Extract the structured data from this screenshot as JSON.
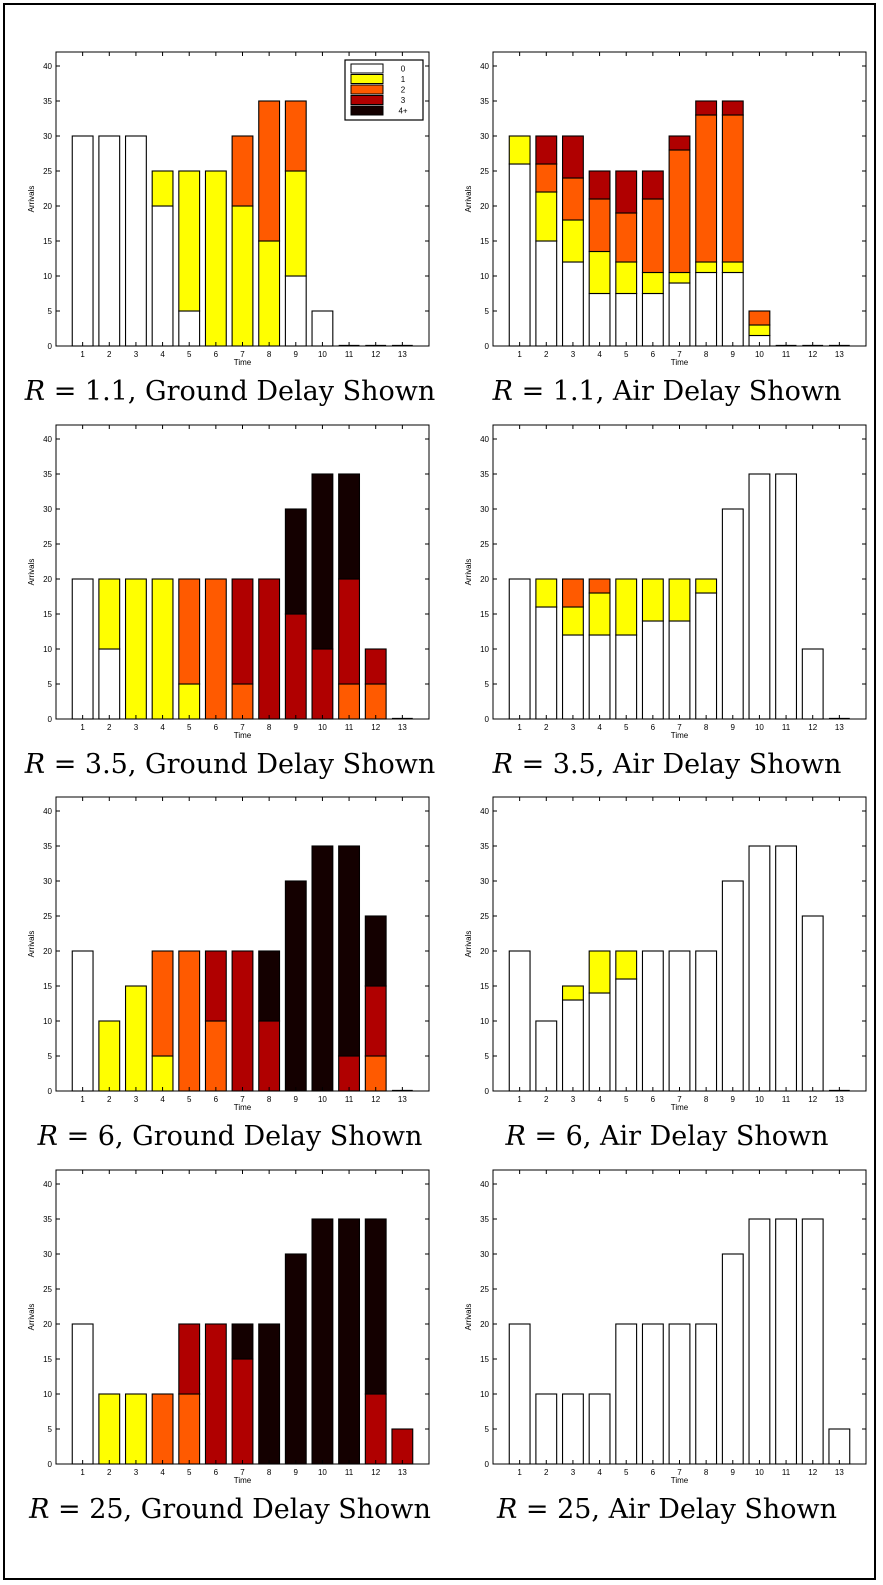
{
  "legend": {
    "items": [
      {
        "label": "0",
        "color": "#ffffff"
      },
      {
        "label": "1",
        "color": "#ffff00"
      },
      {
        "label": "2",
        "color": "#ff5a00"
      },
      {
        "label": "3",
        "color": "#b00000"
      },
      {
        "label": "4+",
        "color": "#140000"
      }
    ]
  },
  "colors": [
    "#ffffff",
    "#ffff00",
    "#ff5a00",
    "#b00000",
    "#140000"
  ],
  "chart_data": [
    {
      "type": "bar",
      "stacked": true,
      "caption": {
        "var": "R",
        "eq": " = 1.1, ",
        "text": "Ground Delay Shown"
      },
      "xlabel": "Time",
      "ylabel": "Arrivals",
      "ylim": [
        0,
        42
      ],
      "yticks": [
        0,
        5,
        10,
        15,
        20,
        25,
        30,
        35,
        40
      ],
      "categories": [
        "1",
        "2",
        "3",
        "4",
        "5",
        "6",
        "7",
        "8",
        "9",
        "10",
        "11",
        "12",
        "13"
      ],
      "legend_position": "top-right",
      "series": [
        {
          "name": "0",
          "values": [
            30,
            30,
            30,
            20,
            5,
            0,
            0,
            0,
            10,
            5,
            0,
            0,
            0
          ]
        },
        {
          "name": "1",
          "values": [
            0,
            0,
            0,
            5,
            20,
            25,
            20,
            15,
            15,
            0,
            0,
            0,
            0
          ]
        },
        {
          "name": "2",
          "values": [
            0,
            0,
            0,
            0,
            0,
            0,
            10,
            20,
            10,
            0,
            0,
            0,
            0
          ]
        },
        {
          "name": "3",
          "values": [
            0,
            0,
            0,
            0,
            0,
            0,
            0,
            0,
            0,
            0,
            0,
            0,
            0
          ]
        },
        {
          "name": "4+",
          "values": [
            0,
            0,
            0,
            0,
            0,
            0,
            0,
            0,
            0,
            0,
            0,
            0,
            0
          ]
        }
      ]
    },
    {
      "type": "bar",
      "stacked": true,
      "caption": {
        "var": "R",
        "eq": " = 1.1, ",
        "text": "Air Delay Shown"
      },
      "xlabel": "Time",
      "ylabel": "Arrivals",
      "ylim": [
        0,
        42
      ],
      "yticks": [
        0,
        5,
        10,
        15,
        20,
        25,
        30,
        35,
        40
      ],
      "categories": [
        "1",
        "2",
        "3",
        "4",
        "5",
        "6",
        "7",
        "8",
        "9",
        "10",
        "11",
        "12",
        "13"
      ],
      "series": [
        {
          "name": "0",
          "values": [
            26,
            15,
            12,
            7.5,
            7.5,
            7.5,
            9,
            10.5,
            10.5,
            1.5,
            0,
            0,
            0
          ]
        },
        {
          "name": "1",
          "values": [
            4,
            7,
            6,
            6,
            4.5,
            3,
            1.5,
            1.5,
            1.5,
            1.5,
            0,
            0,
            0
          ]
        },
        {
          "name": "2",
          "values": [
            0,
            4,
            6,
            7.5,
            7,
            10.5,
            17.5,
            21,
            21,
            2,
            0,
            0,
            0
          ]
        },
        {
          "name": "3",
          "values": [
            0,
            4,
            6,
            4,
            6,
            4,
            2,
            2,
            2,
            0,
            0,
            0,
            0
          ]
        },
        {
          "name": "4+",
          "values": [
            0,
            0,
            0,
            0,
            0,
            0,
            0,
            0,
            0,
            0,
            0,
            0,
            0
          ]
        }
      ]
    },
    {
      "type": "bar",
      "stacked": true,
      "caption": {
        "var": "R",
        "eq": " = 3.5, ",
        "text": "Ground Delay Shown"
      },
      "xlabel": "Time",
      "ylabel": "Arrivals",
      "ylim": [
        0,
        42
      ],
      "yticks": [
        0,
        5,
        10,
        15,
        20,
        25,
        30,
        35,
        40
      ],
      "categories": [
        "1",
        "2",
        "3",
        "4",
        "5",
        "6",
        "7",
        "8",
        "9",
        "10",
        "11",
        "12",
        "13"
      ],
      "series": [
        {
          "name": "0",
          "values": [
            20,
            10,
            0,
            0,
            0,
            0,
            0,
            0,
            0,
            0,
            0,
            0,
            0
          ]
        },
        {
          "name": "1",
          "values": [
            0,
            10,
            20,
            20,
            5,
            0,
            0,
            0,
            0,
            0,
            0,
            0,
            0
          ]
        },
        {
          "name": "2",
          "values": [
            0,
            0,
            0,
            0,
            15,
            20,
            5,
            0,
            0,
            0,
            5,
            5,
            0
          ]
        },
        {
          "name": "3",
          "values": [
            0,
            0,
            0,
            0,
            0,
            0,
            15,
            20,
            15,
            10,
            15,
            5,
            0
          ]
        },
        {
          "name": "4+",
          "values": [
            0,
            0,
            0,
            0,
            0,
            0,
            0,
            0,
            15,
            25,
            15,
            0,
            0
          ]
        }
      ]
    },
    {
      "type": "bar",
      "stacked": true,
      "caption": {
        "var": "R",
        "eq": " = 3.5, ",
        "text": "Air Delay Shown"
      },
      "xlabel": "Time",
      "ylabel": "Arrivals",
      "ylim": [
        0,
        42
      ],
      "yticks": [
        0,
        5,
        10,
        15,
        20,
        25,
        30,
        35,
        40
      ],
      "categories": [
        "1",
        "2",
        "3",
        "4",
        "5",
        "6",
        "7",
        "8",
        "9",
        "10",
        "11",
        "12",
        "13"
      ],
      "series": [
        {
          "name": "0",
          "values": [
            20,
            16,
            12,
            12,
            12,
            14,
            14,
            18,
            30,
            35,
            35,
            10,
            0
          ]
        },
        {
          "name": "1",
          "values": [
            0,
            4,
            4,
            6,
            8,
            6,
            6,
            2,
            0,
            0,
            0,
            0,
            0
          ]
        },
        {
          "name": "2",
          "values": [
            0,
            0,
            4,
            2,
            0,
            0,
            0,
            0,
            0,
            0,
            0,
            0,
            0
          ]
        },
        {
          "name": "3",
          "values": [
            0,
            0,
            0,
            0,
            0,
            0,
            0,
            0,
            0,
            0,
            0,
            0,
            0
          ]
        },
        {
          "name": "4+",
          "values": [
            0,
            0,
            0,
            0,
            0,
            0,
            0,
            0,
            0,
            0,
            0,
            0,
            0
          ]
        }
      ]
    },
    {
      "type": "bar",
      "stacked": true,
      "caption": {
        "var": "R",
        "eq": " = 6, ",
        "text": "Ground Delay Shown"
      },
      "xlabel": "Time",
      "ylabel": "Arrivals",
      "ylim": [
        0,
        42
      ],
      "yticks": [
        0,
        5,
        10,
        15,
        20,
        25,
        30,
        35,
        40
      ],
      "categories": [
        "1",
        "2",
        "3",
        "4",
        "5",
        "6",
        "7",
        "8",
        "9",
        "10",
        "11",
        "12",
        "13"
      ],
      "series": [
        {
          "name": "0",
          "values": [
            20,
            0,
            0,
            0,
            0,
            0,
            0,
            0,
            0,
            0,
            0,
            0,
            0
          ]
        },
        {
          "name": "1",
          "values": [
            0,
            10,
            15,
            5,
            0,
            0,
            0,
            0,
            0,
            0,
            0,
            0,
            0
          ]
        },
        {
          "name": "2",
          "values": [
            0,
            0,
            0,
            15,
            20,
            10,
            0,
            0,
            0,
            0,
            0,
            5,
            0
          ]
        },
        {
          "name": "3",
          "values": [
            0,
            0,
            0,
            0,
            0,
            10,
            20,
            10,
            0,
            0,
            5,
            10,
            0
          ]
        },
        {
          "name": "4+",
          "values": [
            0,
            0,
            0,
            0,
            0,
            0,
            0,
            10,
            30,
            35,
            30,
            10,
            0
          ]
        }
      ]
    },
    {
      "type": "bar",
      "stacked": true,
      "caption": {
        "var": "R",
        "eq": " = 6, ",
        "text": "Air Delay Shown"
      },
      "xlabel": "Time",
      "ylabel": "Arrivals",
      "ylim": [
        0,
        42
      ],
      "yticks": [
        0,
        5,
        10,
        15,
        20,
        25,
        30,
        35,
        40
      ],
      "categories": [
        "1",
        "2",
        "3",
        "4",
        "5",
        "6",
        "7",
        "8",
        "9",
        "10",
        "11",
        "12",
        "13"
      ],
      "series": [
        {
          "name": "0",
          "values": [
            20,
            10,
            13,
            14,
            16,
            20,
            20,
            20,
            30,
            35,
            35,
            25,
            0
          ]
        },
        {
          "name": "1",
          "values": [
            0,
            0,
            2,
            6,
            4,
            0,
            0,
            0,
            0,
            0,
            0,
            0,
            0
          ]
        },
        {
          "name": "2",
          "values": [
            0,
            0,
            0,
            0,
            0,
            0,
            0,
            0,
            0,
            0,
            0,
            0,
            0
          ]
        },
        {
          "name": "3",
          "values": [
            0,
            0,
            0,
            0,
            0,
            0,
            0,
            0,
            0,
            0,
            0,
            0,
            0
          ]
        },
        {
          "name": "4+",
          "values": [
            0,
            0,
            0,
            0,
            0,
            0,
            0,
            0,
            0,
            0,
            0,
            0,
            0
          ]
        }
      ]
    },
    {
      "type": "bar",
      "stacked": true,
      "caption": {
        "var": "R",
        "eq": " = 25, ",
        "text": "Ground Delay Shown"
      },
      "xlabel": "Time",
      "ylabel": "Arrivals",
      "ylim": [
        0,
        42
      ],
      "yticks": [
        0,
        5,
        10,
        15,
        20,
        25,
        30,
        35,
        40
      ],
      "categories": [
        "1",
        "2",
        "3",
        "4",
        "5",
        "6",
        "7",
        "8",
        "9",
        "10",
        "11",
        "12",
        "13"
      ],
      "series": [
        {
          "name": "0",
          "values": [
            20,
            0,
            0,
            0,
            0,
            0,
            0,
            0,
            0,
            0,
            0,
            0,
            0
          ]
        },
        {
          "name": "1",
          "values": [
            0,
            10,
            10,
            0,
            0,
            0,
            0,
            0,
            0,
            0,
            0,
            0,
            0
          ]
        },
        {
          "name": "2",
          "values": [
            0,
            0,
            0,
            10,
            10,
            0,
            0,
            0,
            0,
            0,
            0,
            0,
            0
          ]
        },
        {
          "name": "3",
          "values": [
            0,
            0,
            0,
            0,
            10,
            20,
            15,
            0,
            0,
            0,
            0,
            10,
            5
          ]
        },
        {
          "name": "4+",
          "values": [
            0,
            0,
            0,
            0,
            0,
            0,
            5,
            20,
            30,
            35,
            35,
            25,
            0
          ]
        }
      ]
    },
    {
      "type": "bar",
      "stacked": true,
      "caption": {
        "var": "R",
        "eq": " = 25, ",
        "text": "Air Delay Shown"
      },
      "xlabel": "Time",
      "ylabel": "Arrivals",
      "ylim": [
        0,
        42
      ],
      "yticks": [
        0,
        5,
        10,
        15,
        20,
        25,
        30,
        35,
        40
      ],
      "categories": [
        "1",
        "2",
        "3",
        "4",
        "5",
        "6",
        "7",
        "8",
        "9",
        "10",
        "11",
        "12",
        "13"
      ],
      "series": [
        {
          "name": "0",
          "values": [
            20,
            10,
            10,
            10,
            20,
            20,
            20,
            20,
            30,
            35,
            35,
            35,
            5
          ]
        },
        {
          "name": "1",
          "values": [
            0,
            0,
            0,
            0,
            0,
            0,
            0,
            0,
            0,
            0,
            0,
            0,
            0
          ]
        },
        {
          "name": "2",
          "values": [
            0,
            0,
            0,
            0,
            0,
            0,
            0,
            0,
            0,
            0,
            0,
            0,
            0
          ]
        },
        {
          "name": "3",
          "values": [
            0,
            0,
            0,
            0,
            0,
            0,
            0,
            0,
            0,
            0,
            0,
            0,
            0
          ]
        },
        {
          "name": "4+",
          "values": [
            0,
            0,
            0,
            0,
            0,
            0,
            0,
            0,
            0,
            0,
            0,
            0,
            0
          ]
        }
      ]
    }
  ]
}
